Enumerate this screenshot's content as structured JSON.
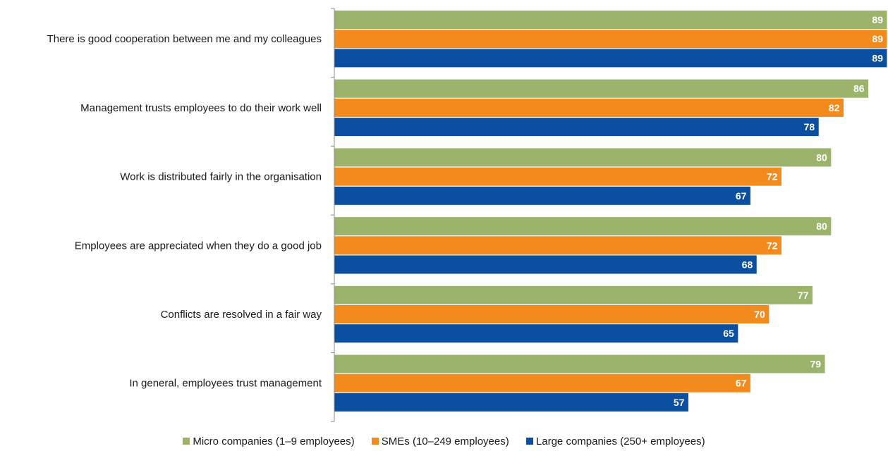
{
  "chart_data": {
    "type": "bar",
    "orientation": "horizontal",
    "categories": [
      "There is good cooperation between me and my colleagues",
      "Management trusts employees to do their work well",
      "Work is distributed fairly in the organisation",
      "Employees are appreciated when they do a good job",
      "Conflicts are resolved in a fair way",
      "In general, employees trust management"
    ],
    "series": [
      {
        "name": "Micro companies (1–9 employees)",
        "color": "#9bb36b",
        "values": [
          89,
          86,
          80,
          80,
          77,
          79
        ]
      },
      {
        "name": "SMEs (10–249 employees)",
        "color": "#f28a1e",
        "values": [
          89,
          82,
          72,
          72,
          70,
          67
        ]
      },
      {
        "name": "Large companies (250+ employees)",
        "color": "#0b4fa0",
        "values": [
          89,
          78,
          67,
          68,
          65,
          57
        ]
      }
    ],
    "xlim": [
      0,
      89
    ],
    "grid": false,
    "legend_position": "bottom",
    "data_labels": true
  }
}
